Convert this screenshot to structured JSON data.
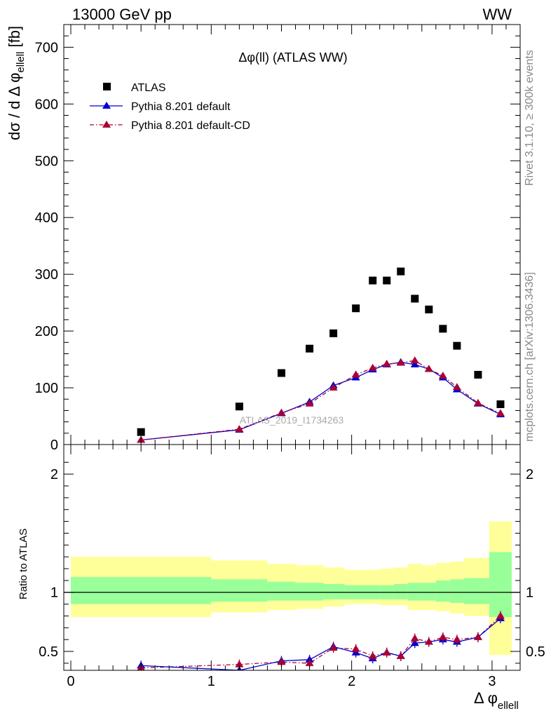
{
  "header": {
    "left": "13000 GeV pp",
    "right": "WW"
  },
  "side": {
    "rivet": "Rivet 3.1.10, ≥ 300k events",
    "mcplots": "mcplots.cern.ch [arXiv:1306.3436]"
  },
  "colors": {
    "atlas": "#000000",
    "pythia_default": "#0000cc",
    "pythia_cd": "#aa0033",
    "band_inner": "#99ff99",
    "band_outer": "#ffff99"
  },
  "chart_data": [
    {
      "type": "scatter",
      "title": "Δφ(ll) (ATLAS WW)",
      "watermark": "ATLAS_2019_I1734263",
      "ylabel": "dσ / d Δ φ_ellell [fb]",
      "xlim": [
        -0.05,
        3.2
      ],
      "ylim": [
        0,
        740
      ],
      "yticks": [
        0,
        100,
        200,
        300,
        400,
        500,
        600,
        700
      ],
      "ytick_labels": [
        "0",
        "100",
        "200",
        "300",
        "400",
        "500",
        "600",
        "700"
      ],
      "legend": {
        "position": "top-left",
        "entries": [
          "ATLAS",
          "Pythia 8.201 default",
          "Pythia 8.201 default-CD"
        ]
      },
      "x": [
        0.5,
        1.2,
        1.5,
        1.7,
        1.87,
        2.03,
        2.15,
        2.25,
        2.35,
        2.45,
        2.55,
        2.65,
        2.75,
        2.9,
        3.06
      ],
      "series": [
        {
          "name": "ATLAS",
          "values": [
            22,
            67,
            126,
            169,
            196,
            240,
            289,
            289,
            305,
            257,
            238,
            204,
            174,
            123,
            71
          ]
        },
        {
          "name": "Pythia 8.201 default",
          "values": [
            8,
            26,
            55,
            75,
            104,
            118,
            132,
            141,
            145,
            141,
            133,
            118,
            97,
            72,
            53
          ]
        },
        {
          "name": "Pythia 8.201 default-CD",
          "values": [
            8,
            27,
            56,
            72,
            100,
            123,
            135,
            142,
            144,
            148,
            133,
            121,
            101,
            73,
            55
          ]
        }
      ]
    },
    {
      "type": "line",
      "ylabel": "Ratio to ATLAS",
      "xlabel": "Δ φ_ellell",
      "xlim": [
        -0.05,
        3.2
      ],
      "ylim": [
        0.34,
        2.25
      ],
      "xticks": [
        0,
        1,
        2,
        3
      ],
      "xtick_labels": [
        "0",
        "1",
        "2",
        "3"
      ],
      "yticks": [
        0.5,
        1,
        2
      ],
      "ytick_labels": [
        "0.5",
        "1",
        "2"
      ],
      "bands": [
        {
          "x0": 0,
          "x1": 1,
          "inner": [
            0.9,
            1.13
          ],
          "outer": [
            0.79,
            1.3
          ]
        },
        {
          "x0": 1,
          "x1": 1.4,
          "inner": [
            0.92,
            1.11
          ],
          "outer": [
            0.83,
            1.27
          ]
        },
        {
          "x0": 1.4,
          "x1": 1.6,
          "inner": [
            0.93,
            1.09
          ],
          "outer": [
            0.85,
            1.24
          ]
        },
        {
          "x0": 1.6,
          "x1": 1.8,
          "inner": [
            0.93,
            1.08
          ],
          "outer": [
            0.86,
            1.23
          ]
        },
        {
          "x0": 1.8,
          "x1": 1.95,
          "inner": [
            0.94,
            1.07
          ],
          "outer": [
            0.88,
            1.21
          ]
        },
        {
          "x0": 1.95,
          "x1": 2.1,
          "inner": [
            0.94,
            1.06
          ],
          "outer": [
            0.9,
            1.19
          ]
        },
        {
          "x0": 2.1,
          "x1": 2.2,
          "inner": [
            0.94,
            1.06
          ],
          "outer": [
            0.9,
            1.19
          ]
        },
        {
          "x0": 2.2,
          "x1": 2.3,
          "inner": [
            0.94,
            1.06
          ],
          "outer": [
            0.89,
            1.2
          ]
        },
        {
          "x0": 2.3,
          "x1": 2.4,
          "inner": [
            0.94,
            1.07
          ],
          "outer": [
            0.89,
            1.21
          ]
        },
        {
          "x0": 2.4,
          "x1": 2.5,
          "inner": [
            0.93,
            1.08
          ],
          "outer": [
            0.85,
            1.24
          ]
        },
        {
          "x0": 2.5,
          "x1": 2.6,
          "inner": [
            0.93,
            1.08
          ],
          "outer": [
            0.85,
            1.23
          ]
        },
        {
          "x0": 2.6,
          "x1": 2.7,
          "inner": [
            0.92,
            1.1
          ],
          "outer": [
            0.84,
            1.25
          ]
        },
        {
          "x0": 2.7,
          "x1": 2.8,
          "inner": [
            0.91,
            1.11
          ],
          "outer": [
            0.82,
            1.26
          ]
        },
        {
          "x0": 2.8,
          "x1": 2.98,
          "inner": [
            0.9,
            1.12
          ],
          "outer": [
            0.8,
            1.29
          ]
        },
        {
          "x0": 2.98,
          "x1": 3.14,
          "inner": [
            0.79,
            1.34
          ],
          "outer": [
            0.47,
            1.6
          ]
        }
      ],
      "x": [
        0.5,
        1.2,
        1.5,
        1.7,
        1.87,
        2.03,
        2.15,
        2.25,
        2.35,
        2.45,
        2.55,
        2.65,
        2.75,
        2.9,
        3.06
      ],
      "series": [
        {
          "name": "Pythia 8.201 default",
          "values": [
            0.38,
            0.34,
            0.42,
            0.43,
            0.54,
            0.49,
            0.44,
            0.49,
            0.46,
            0.57,
            0.58,
            0.6,
            0.58,
            0.62,
            0.78
          ]
        },
        {
          "name": "Pythia 8.201 default-CD",
          "values": [
            0.36,
            0.39,
            0.41,
            0.4,
            0.53,
            0.52,
            0.46,
            0.49,
            0.46,
            0.61,
            0.58,
            0.62,
            0.6,
            0.62,
            0.8
          ]
        }
      ]
    }
  ]
}
